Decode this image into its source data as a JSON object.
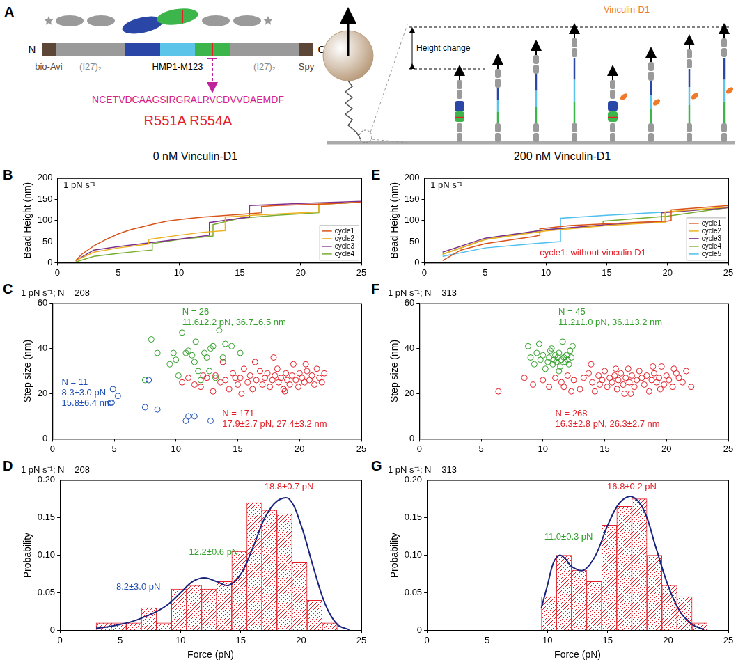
{
  "panel_a": {
    "letter": "A",
    "n_label": "N",
    "c_label": "C",
    "labels": [
      "bio-Avi",
      "(I27)₂",
      "HMP1-M123",
      "(I27)₂",
      "Spy"
    ],
    "sequence": "NCETVDCAAGSIRGRALRVCDVVDAEMDF",
    "mutations": "R551A R554A",
    "height_change": "Height change",
    "vinculin": "Vinculin-D1"
  },
  "column_titles": [
    "0 nM Vinculin-D1",
    "200 nM Vinculin-D1"
  ],
  "chart_data": [
    {
      "panel": "B",
      "type": "line",
      "y_label": "Bead Height (nm)",
      "annotations": [
        {
          "lines": [
            "1 pN s⁻¹"
          ],
          "color": "#000000"
        }
      ],
      "xlim": [
        0,
        25
      ],
      "xticks": [
        0,
        5,
        10,
        15,
        20,
        25
      ],
      "ylim": [
        0,
        200
      ],
      "yticks": [
        0,
        50,
        100,
        150,
        200
      ],
      "grid": false,
      "legend": "bottom right",
      "series": [
        {
          "name": "cycle1",
          "color": "#d95319",
          "line_style": "solid",
          "x": [
            1.5,
            2,
            3,
            4,
            5,
            6,
            7,
            8,
            9,
            10,
            11,
            12,
            13,
            14,
            15,
            16,
            16.8,
            16.8,
            18,
            20,
            22,
            25
          ],
          "values": [
            5,
            20,
            40,
            55,
            68,
            78,
            85,
            92,
            98,
            102,
            105,
            108,
            110,
            112,
            114,
            116,
            118,
            133,
            135,
            137,
            139,
            143
          ]
        },
        {
          "name": "cycle2",
          "color": "#edb120",
          "line_style": "solid",
          "x": [
            1.5,
            3,
            5,
            7,
            7.5,
            7.5,
            10,
            12,
            13.8,
            13.8,
            16,
            20,
            21.5,
            21.5,
            25
          ],
          "values": [
            5,
            25,
            35,
            42,
            44,
            55,
            65,
            72,
            76,
            108,
            112,
            118,
            120,
            138,
            143
          ]
        },
        {
          "name": "cycle3",
          "color": "#7e2f8e",
          "line_style": "solid",
          "x": [
            1.5,
            3,
            5,
            7,
            9,
            12.5,
            12.5,
            15,
            15.8,
            15.8,
            20,
            25
          ],
          "values": [
            5,
            30,
            38,
            45,
            52,
            65,
            95,
            105,
            108,
            135,
            140,
            145
          ]
        },
        {
          "name": "cycle4",
          "color": "#77ac30",
          "line_style": "solid",
          "x": [
            1.5,
            3,
            5,
            7,
            7.8,
            7.8,
            10,
            12.8,
            12.8,
            15,
            18,
            21.5,
            21.5,
            25
          ],
          "values": [
            2,
            15,
            22,
            28,
            30,
            45,
            55,
            63,
            90,
            105,
            112,
            118,
            138,
            143
          ]
        }
      ]
    },
    {
      "panel": "E",
      "type": "line",
      "y_label": "Bead Height (nm)",
      "annotations": [
        {
          "lines": [
            "1 pN s⁻¹"
          ],
          "color": "#000000"
        },
        {
          "lines": [
            "cycle1: without vinculin D1"
          ],
          "color": "#e3202a"
        }
      ],
      "xlim": [
        0,
        25
      ],
      "xticks": [
        0,
        5,
        10,
        15,
        20,
        25
      ],
      "ylim": [
        0,
        200
      ],
      "yticks": [
        0,
        50,
        100,
        150,
        200
      ],
      "grid": false,
      "legend": "bottom right",
      "series": [
        {
          "name": "cycle1",
          "color": "#d95319",
          "line_style": "solid",
          "x": [
            1.5,
            3,
            5,
            9,
            9.5,
            9.5,
            12,
            15,
            18,
            20,
            20.3,
            20.3,
            25
          ],
          "values": [
            5,
            30,
            45,
            62,
            65,
            80,
            88,
            92,
            96,
            98,
            100,
            125,
            135
          ]
        },
        {
          "name": "cycle2",
          "color": "#edb120",
          "line_style": "solid",
          "x": [
            1.5,
            5,
            10,
            15,
            19.8,
            19.8,
            25
          ],
          "values": [
            20,
            55,
            75,
            88,
            96,
            120,
            132
          ]
        },
        {
          "name": "cycle3",
          "color": "#7e2f8e",
          "line_style": "solid",
          "x": [
            1.5,
            5,
            10,
            15,
            19.5,
            19.5,
            25
          ],
          "values": [
            25,
            58,
            78,
            90,
            96,
            118,
            130
          ]
        },
        {
          "name": "cycle4",
          "color": "#77ac30",
          "line_style": "solid",
          "x": [
            1.5,
            5,
            10,
            14.7,
            14.7,
            20,
            25
          ],
          "values": [
            20,
            55,
            78,
            88,
            98,
            110,
            130
          ]
        },
        {
          "name": "cycle5",
          "color": "#4dbeee",
          "line_style": "solid",
          "x": [
            1.5,
            5,
            9,
            11.2,
            11.2,
            15,
            20,
            25
          ],
          "values": [
            15,
            35,
            45,
            50,
            105,
            112,
            120,
            130
          ]
        }
      ]
    },
    {
      "panel": "C",
      "type": "scatter",
      "title": "1 pN s⁻¹; N = 208",
      "y_label": "Step size (nm)",
      "annotations": [
        {
          "lines": [
            "N = 26",
            "11.6±2.2 pN, 36.7±6.5 nm"
          ],
          "color": "#33a02c"
        },
        {
          "lines": [
            "N = 11",
            "8.3±3.0 pN",
            "15.8±6.4 nm"
          ],
          "color": "#1f4eb4"
        },
        {
          "lines": [
            "N = 171",
            "17.9±2.7 pN, 27.4±3.2 nm"
          ],
          "color": "#e3202a"
        }
      ],
      "xlim": [
        0,
        25
      ],
      "xticks": [
        0,
        5,
        10,
        15,
        20,
        25
      ],
      "ylim": [
        0,
        60
      ],
      "yticks": [
        0,
        20,
        40,
        60
      ],
      "grid": false,
      "series": [
        {
          "color": "#1f4eb4",
          "marker": "circle",
          "x": [
            4.7,
            4.9,
            5.3,
            7.5,
            7.8,
            8.5,
            10.8,
            11,
            11.5,
            12.8,
            4.8
          ],
          "values": [
            16,
            22,
            19,
            14,
            26,
            13,
            8,
            10,
            10,
            8,
            16
          ]
        },
        {
          "color": "#33a02c",
          "marker": "circle",
          "x": [
            7.5,
            8,
            8.5,
            9.5,
            9.8,
            10,
            10.5,
            10.8,
            11,
            11.3,
            11.5,
            11.8,
            12,
            12.3,
            12.5,
            12.8,
            13,
            13.2,
            13.5,
            13.8,
            14,
            14.5,
            15.2,
            11.6,
            10.2,
            12.7
          ],
          "values": [
            26,
            44,
            38,
            33,
            38,
            35,
            47,
            38,
            39,
            37,
            34,
            30,
            26,
            38,
            36,
            40,
            41,
            27,
            48,
            36,
            42,
            41,
            38,
            43,
            28,
            30
          ]
        },
        {
          "color": "#e3202a",
          "marker": "circle",
          "x": [
            11.5,
            12,
            12.5,
            13,
            13.2,
            13.6,
            14,
            14.3,
            14.6,
            15,
            15.2,
            15.5,
            15.8,
            16,
            16.2,
            16.5,
            16.8,
            17,
            17.2,
            17.4,
            17.6,
            17.8,
            18,
            18.2,
            18.3,
            18.5,
            18.7,
            18.9,
            19,
            19.2,
            19.4,
            19.5,
            19.7,
            19.9,
            20,
            20.2,
            20.4,
            20.6,
            20.8,
            21,
            21.2,
            21.4,
            21.6,
            21.8,
            22,
            16.4,
            17.9,
            15.3,
            18.8,
            20.5,
            14.8,
            12.2,
            10.5,
            11,
            13.8
          ],
          "values": [
            24,
            23,
            27,
            21,
            28,
            25,
            26,
            22,
            29,
            24,
            27,
            31,
            25,
            28,
            22,
            26,
            30,
            24,
            27,
            29,
            23,
            26,
            28,
            31,
            25,
            27,
            22,
            29,
            26,
            24,
            28,
            33,
            26,
            23,
            29,
            27,
            25,
            30,
            26,
            28,
            24,
            31,
            27,
            25,
            29,
            34,
            36,
            20,
            21,
            33,
            27,
            28,
            25,
            27,
            34
          ]
        }
      ]
    },
    {
      "panel": "F",
      "type": "scatter",
      "title": "1 pN s⁻¹; N = 313",
      "y_label": "Step size (nm)",
      "annotations": [
        {
          "lines": [
            "N = 45",
            "11.2±1.0 pN, 36.1±3.2 nm"
          ],
          "color": "#33a02c"
        },
        {
          "lines": [
            "N = 268",
            "16.3±2.8 pN, 26.3±2.7 nm"
          ],
          "color": "#e3202a"
        }
      ],
      "xlim": [
        0,
        25
      ],
      "xticks": [
        0,
        5,
        10,
        15,
        20,
        25
      ],
      "ylim": [
        0,
        60
      ],
      "yticks": [
        0,
        20,
        40,
        60
      ],
      "grid": false,
      "series": [
        {
          "color": "#33a02c",
          "marker": "circle",
          "x": [
            8.8,
            9.0,
            9.3,
            9.5,
            9.8,
            10,
            10.2,
            10.4,
            10.5,
            10.6,
            10.8,
            10.9,
            11,
            11.1,
            11.2,
            11.3,
            11.4,
            11.5,
            11.6,
            11.7,
            11.8,
            11.9,
            12,
            12.1,
            12.2,
            12.3,
            12.4,
            10.7,
            9.7,
            11.3
          ],
          "values": [
            41,
            36,
            33,
            38,
            35,
            37,
            31,
            34,
            36,
            39,
            33,
            35,
            37,
            34,
            36,
            38,
            32,
            35,
            43,
            36,
            34,
            37,
            35,
            33,
            39,
            36,
            41,
            40,
            42,
            30
          ]
        },
        {
          "color": "#e3202a",
          "marker": "circle",
          "x": [
            6.4,
            8.5,
            9.2,
            10,
            10.5,
            11,
            11.5,
            12,
            12.5,
            13,
            13.3,
            13.7,
            14,
            14.2,
            14.5,
            14.8,
            15,
            15.2,
            15.4,
            15.6,
            15.8,
            16,
            16.1,
            16.3,
            16.5,
            16.7,
            16.9,
            17,
            17.2,
            17.4,
            17.6,
            17.8,
            18,
            18.2,
            18.4,
            18.6,
            18.8,
            19,
            19.2,
            19.4,
            19.6,
            19.8,
            20,
            20.2,
            20.5,
            20.8,
            21,
            21.3,
            21.6,
            22,
            13.9,
            17.1,
            18.9,
            12.3,
            15.9,
            11.7,
            20.6,
            16.6,
            14.6,
            19.5
          ],
          "values": [
            21,
            27,
            24,
            26,
            23,
            27,
            25,
            28,
            26,
            22,
            27,
            29,
            25,
            21,
            28,
            26,
            30,
            23,
            27,
            25,
            28,
            22,
            26,
            29,
            24,
            27,
            31,
            25,
            28,
            23,
            26,
            30,
            27,
            24,
            28,
            21,
            26,
            29,
            25,
            27,
            32,
            24,
            28,
            26,
            23,
            29,
            27,
            25,
            30,
            23,
            33,
            20,
            32,
            21,
            31,
            23,
            31,
            20,
            24,
            22
          ]
        }
      ]
    },
    {
      "panel": "D",
      "type": "histogram",
      "title": "1 pN s⁻¹; N = 208",
      "x_label": "Force (pN)",
      "y_label": "Probability",
      "annotations": [
        {
          "lines": [
            "18.8±0.7 pN"
          ],
          "color": "#e3202a"
        },
        {
          "lines": [
            "12.2±0.6 pN"
          ],
          "color": "#33a02c"
        },
        {
          "lines": [
            "8.2±3.0 pN"
          ],
          "color": "#1f4eb4"
        }
      ],
      "xlim": [
        0,
        25
      ],
      "xticks": [
        0,
        5,
        10,
        15,
        20,
        25
      ],
      "ylim": [
        0,
        0.2
      ],
      "yticks": [
        0,
        0.05,
        {
          "value": 0.1,
          "label": "0.10"
        },
        0.15,
        {
          "value": 0.2,
          "label": "0.20"
        }
      ],
      "grid": false,
      "color": "#e3202a",
      "bins": [
        3,
        4.25,
        5.5,
        6.75,
        8,
        9.25,
        10.5,
        11.75,
        13,
        14.25,
        15.5,
        16.75,
        18,
        19.25,
        20.5,
        21.75,
        23
      ],
      "values": [
        0.01,
        0.01,
        0.01,
        0.03,
        0.01,
        0.055,
        0.06,
        0.055,
        0.065,
        0.105,
        0.17,
        0.16,
        0.155,
        0.09,
        0.04,
        0.01
      ],
      "series": [
        {
          "type": "line",
          "color": "#1a237e",
          "x": [
            3,
            4,
            5,
            6,
            7,
            8,
            9,
            10,
            11,
            12,
            13,
            14,
            15,
            16,
            17,
            18,
            19,
            20,
            21,
            22,
            23,
            24
          ],
          "values": [
            0.003,
            0.005,
            0.008,
            0.012,
            0.018,
            0.025,
            0.035,
            0.05,
            0.065,
            0.07,
            0.065,
            0.06,
            0.075,
            0.11,
            0.15,
            0.172,
            0.175,
            0.14,
            0.085,
            0.035,
            0.008,
            0.001
          ]
        }
      ]
    },
    {
      "panel": "G",
      "type": "histogram",
      "title": "1 pN s⁻¹; N = 313",
      "x_label": "Force (pN)",
      "y_label": "Probability",
      "annotations": [
        {
          "lines": [
            "16.8±0.2 pN"
          ],
          "color": "#e3202a"
        },
        {
          "lines": [
            "11.0±0.3 pN"
          ],
          "color": "#33a02c"
        }
      ],
      "xlim": [
        0,
        25
      ],
      "xticks": [
        0,
        5,
        10,
        15,
        20,
        25
      ],
      "ylim": [
        0,
        0.2
      ],
      "yticks": [
        0,
        0.05,
        {
          "value": 0.1,
          "label": "0.10"
        },
        0.15,
        {
          "value": 0.2,
          "label": "0.20"
        }
      ],
      "grid": false,
      "color": "#e3202a",
      "bins": [
        9.5,
        10.75,
        12,
        13.25,
        14.5,
        15.75,
        17,
        18.25,
        19.5,
        20.75,
        22,
        23.25
      ],
      "values": [
        0.045,
        0.1,
        0.08,
        0.065,
        0.14,
        0.165,
        0.175,
        0.1,
        0.06,
        0.045,
        0.01
      ],
      "series": [
        {
          "type": "line",
          "color": "#1a237e",
          "x": [
            9.5,
            10,
            10.5,
            11,
            11.5,
            12,
            13,
            14,
            15,
            16,
            17,
            18,
            19,
            20,
            21,
            22,
            23
          ],
          "values": [
            0.03,
            0.06,
            0.09,
            0.1,
            0.095,
            0.085,
            0.08,
            0.1,
            0.14,
            0.17,
            0.178,
            0.16,
            0.11,
            0.06,
            0.025,
            0.008,
            0.001
          ]
        }
      ]
    }
  ]
}
